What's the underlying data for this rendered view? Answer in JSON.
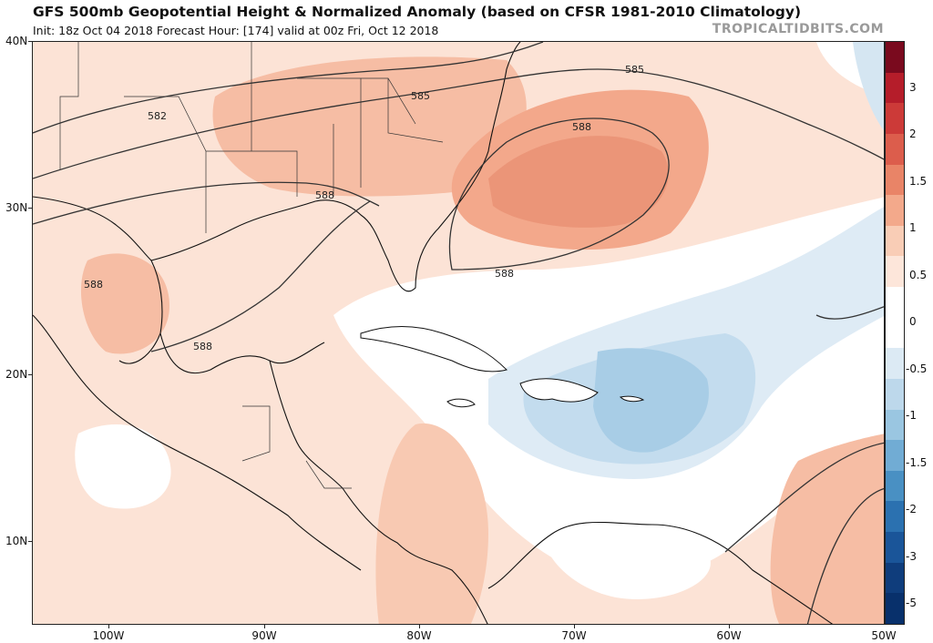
{
  "header": {
    "title": "GFS 500mb Geopotential Height & Normalized Anomaly (based on CFSR 1981-2010 Climatology)",
    "subtitle": "Init: 18z Oct 04 2018   Forecast Hour: [174]   valid at 00z Fri, Oct 12 2018",
    "credit": "TROPICALTIDBITS.COM"
  },
  "map": {
    "lat_labels": [
      "40N",
      "30N",
      "20N",
      "10N"
    ],
    "lon_labels": [
      "100W",
      "90W",
      "80W",
      "70W",
      "60W",
      "50W"
    ],
    "contour_labels": [
      "585",
      "585",
      "582",
      "588",
      "588",
      "588",
      "588",
      "588"
    ]
  },
  "colorbar": {
    "labels": [
      "3",
      "2",
      "1.5",
      "1",
      "0.5",
      "0",
      "-0.5",
      "-1",
      "-1.5",
      "-2",
      "-3",
      "-5"
    ],
    "colors": [
      "#7a0a1e",
      "#b51d2a",
      "#cc3a38",
      "#dc5d4c",
      "#e98467",
      "#f3a98b",
      "#f9cdb6",
      "#fde6da",
      "#ffffff",
      "#ffffff",
      "#dceaf4",
      "#bdd8eb",
      "#9ac6e1",
      "#71acd4",
      "#4990c3",
      "#2b71b0",
      "#1a5599",
      "#0f3d7c",
      "#08306b"
    ]
  }
}
